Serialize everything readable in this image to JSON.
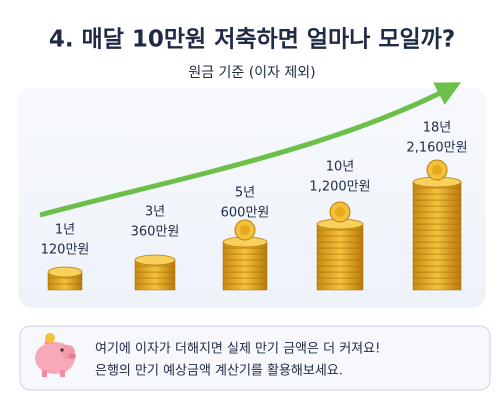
{
  "title": "4. 매달 10만원 저축하면 얼마나 모일까?",
  "subtitle": "원금 기준 (이자 제외)",
  "items": [
    {
      "period": "1년",
      "amount": "120만원"
    },
    {
      "period": "3년",
      "amount": "360만원"
    },
    {
      "period": "5년",
      "amount": "600만원"
    },
    {
      "period": "10년",
      "amount": "1,200만원"
    },
    {
      "period": "18년",
      "amount": "2,160만원"
    }
  ],
  "note": {
    "lines": [
      "여기에 이자가 더해지면 실제 만기 금액은 더 커져요!",
      "은행의 만기 예상금액 계산기를 활용해보세요."
    ]
  }
}
